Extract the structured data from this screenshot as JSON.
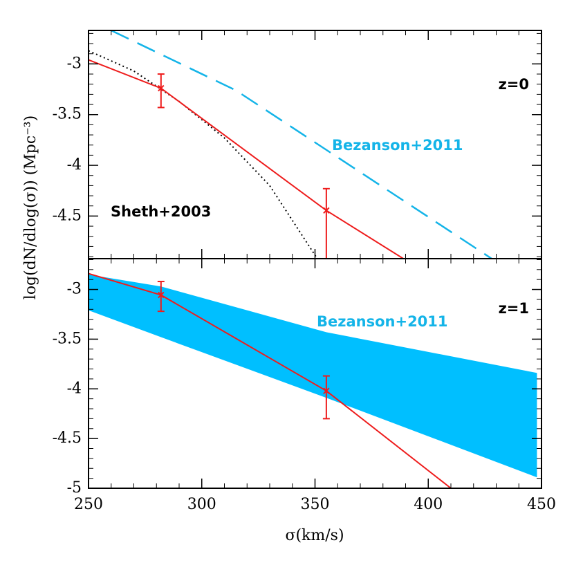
{
  "chart_data": [
    {
      "type": "line",
      "ylabel": "log(dN/dlog(σ))  (Mpc⁻³)",
      "xlim": [
        250,
        450
      ],
      "xticks": [
        250,
        300,
        350,
        400,
        450
      ],
      "ylim": [
        -4.92,
        -2.67
      ],
      "yticks": [
        -3,
        -3.5,
        -4,
        -4.5
      ],
      "annotations": [
        {
          "text": "z=0",
          "color": "#000000"
        },
        {
          "text": "Bezanson+2011",
          "color": "#14b4e8"
        },
        {
          "text": "Sheth+2003",
          "color": "#000000"
        }
      ],
      "series": [
        {
          "style": "dotted",
          "color": "#000000",
          "x": [
            250,
            270,
            290,
            310,
            330,
            351
          ],
          "values": [
            -2.87,
            -3.07,
            -3.37,
            -3.73,
            -4.2,
            -4.92
          ]
        },
        {
          "style": "dashed",
          "color": "#14b4e8",
          "x": [
            260,
            315,
            428
          ],
          "values": [
            -2.67,
            -3.26,
            -4.92
          ]
        },
        {
          "style": "solid",
          "color": "#ee1c1c",
          "x": [
            250,
            282,
            355,
            389
          ],
          "values": [
            -2.96,
            -3.24,
            -4.445,
            -4.92
          ]
        },
        {
          "style": "errorbar",
          "color": "#ee1c1c",
          "x": [
            282,
            355
          ],
          "values": [
            -3.24,
            -4.445
          ],
          "lower": [
            -3.43,
            -4.92
          ],
          "upper": [
            -3.1,
            -4.23
          ]
        }
      ]
    },
    {
      "type": "line",
      "xlabel": "σ(km/s)",
      "xlim": [
        250,
        450
      ],
      "xticks": [
        250,
        300,
        350,
        400,
        450
      ],
      "ylim": [
        -5,
        -2.69
      ],
      "yticks": [
        -3,
        -3.5,
        -4,
        -4.5,
        -5
      ],
      "annotations": [
        {
          "text": "z=1",
          "color": "#000000"
        },
        {
          "text": "Bezanson+2011",
          "color": "#14b4e8"
        }
      ],
      "series": [
        {
          "style": "band",
          "color": "#00bfff",
          "x": [
            250,
            282,
            355,
            448
          ],
          "upper": [
            -2.85,
            -2.97,
            -3.43,
            -3.84
          ],
          "lower": [
            -3.21,
            -3.48,
            -4.09,
            -4.89
          ]
        },
        {
          "style": "solid",
          "color": "#ee1c1c",
          "x": [
            250,
            282,
            355,
            410
          ],
          "values": [
            -2.84,
            -3.056,
            -4.02,
            -5
          ]
        },
        {
          "style": "errorbar",
          "color": "#ee1c1c",
          "x": [
            282,
            355
          ],
          "values": [
            -3.056,
            -4.02
          ],
          "lower": [
            -3.22,
            -4.3
          ],
          "upper": [
            -2.92,
            -3.87
          ]
        }
      ]
    }
  ]
}
